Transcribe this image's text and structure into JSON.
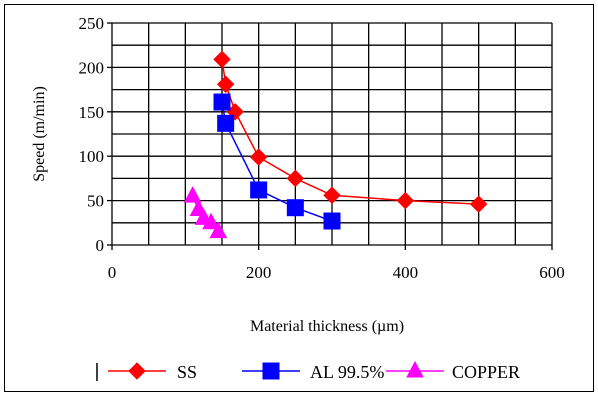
{
  "chart_data": {
    "type": "line",
    "xlabel": "Material thickness (µm)",
    "ylabel": "Speed (m/min)",
    "xlim": [
      0,
      600
    ],
    "ylim": [
      0,
      250
    ],
    "xticks": [
      0,
      200,
      400,
      600
    ],
    "yticks": [
      0,
      50,
      100,
      150,
      200,
      250
    ],
    "grid": true,
    "legend_position": "bottom",
    "series": [
      {
        "name": "SS",
        "color": "#ff0000",
        "marker": "diamond",
        "points": [
          [
            150,
            209
          ],
          [
            155,
            181
          ],
          [
            168,
            150
          ],
          [
            200,
            99
          ],
          [
            250,
            75
          ],
          [
            300,
            56
          ],
          [
            400,
            50
          ],
          [
            500,
            46
          ]
        ]
      },
      {
        "name": "AL 99.5%",
        "color": "#0000ff",
        "marker": "square",
        "points": [
          [
            150,
            161
          ],
          [
            155,
            137
          ],
          [
            200,
            62
          ],
          [
            250,
            42
          ],
          [
            300,
            27
          ]
        ]
      },
      {
        "name": "COPPER",
        "color": "#ff00ff",
        "marker": "triangle",
        "points": [
          [
            110,
            55
          ],
          [
            118,
            40
          ],
          [
            125,
            30
          ],
          [
            135,
            25
          ],
          [
            145,
            15
          ]
        ]
      }
    ]
  }
}
